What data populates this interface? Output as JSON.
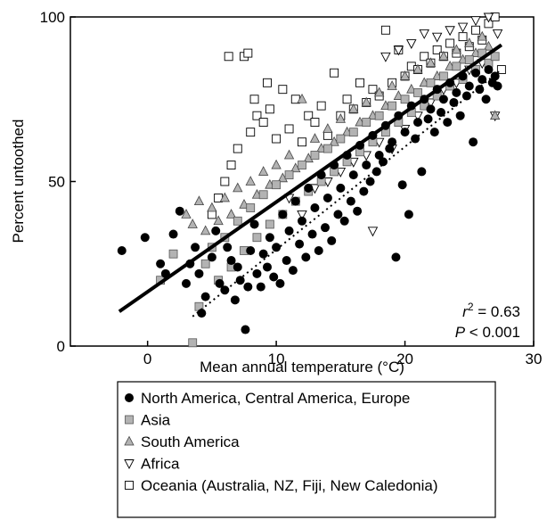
{
  "chart_data": {
    "type": "scatter",
    "xlabel": "Mean annual temperature (°C)",
    "ylabel": "Percent untoothed",
    "xlim": [
      -6,
      30
    ],
    "ylim": [
      0,
      100
    ],
    "xticks": [
      0,
      10,
      20,
      30
    ],
    "yticks": [
      0,
      50,
      100
    ],
    "grid": false,
    "legend_position": "bottom (below plot, boxed)",
    "stats": {
      "r2_label": "r",
      "r2_sup": "2",
      "r2_value": " = 0.63",
      "p_label": "P",
      "p_value": " < 0.001"
    },
    "regression_lines": [
      {
        "name": "overall",
        "style": "solid",
        "x": [
          -2.2,
          27.5
        ],
        "y": [
          10.5,
          91.5
        ]
      },
      {
        "name": "North America, Central America, Europe",
        "style": "dotted",
        "x": [
          3.5,
          27.5
        ],
        "y": [
          9,
          84
        ]
      }
    ],
    "legend": [
      {
        "label": "North America, Central America, Europe",
        "marker": "filled-circle"
      },
      {
        "label": "Asia",
        "marker": "gray-square"
      },
      {
        "label": "South America",
        "marker": "gray-triangle-up"
      },
      {
        "label": "Africa",
        "marker": "open-triangle-down"
      },
      {
        "label": "Oceania (Australia, NZ, Fiji, New Caledonia)",
        "marker": "open-square"
      }
    ],
    "series": [
      {
        "name": "North America, Central America, Europe",
        "marker": "filled-circle",
        "color": "#000000",
        "points": [
          [
            -2,
            29
          ],
          [
            -0.2,
            33
          ],
          [
            1,
            25
          ],
          [
            1.4,
            22
          ],
          [
            2,
            34
          ],
          [
            2.5,
            41
          ],
          [
            3,
            19
          ],
          [
            3.3,
            25
          ],
          [
            3.7,
            30
          ],
          [
            4,
            22
          ],
          [
            4.2,
            10
          ],
          [
            4.5,
            15
          ],
          [
            5,
            27
          ],
          [
            5.3,
            35
          ],
          [
            5.6,
            19
          ],
          [
            6,
            17
          ],
          [
            6.2,
            30
          ],
          [
            6.5,
            26
          ],
          [
            6.8,
            14
          ],
          [
            7,
            24
          ],
          [
            7.2,
            20
          ],
          [
            7.6,
            5
          ],
          [
            7.8,
            18
          ],
          [
            8,
            29
          ],
          [
            8.3,
            37
          ],
          [
            8.5,
            22
          ],
          [
            8.8,
            18
          ],
          [
            9,
            28
          ],
          [
            9.3,
            24
          ],
          [
            9.5,
            33
          ],
          [
            9.8,
            21
          ],
          [
            10,
            30
          ],
          [
            10.3,
            19
          ],
          [
            10.5,
            40
          ],
          [
            10.8,
            26
          ],
          [
            11,
            35
          ],
          [
            11.3,
            23
          ],
          [
            11.5,
            44
          ],
          [
            11.8,
            31
          ],
          [
            12,
            38
          ],
          [
            12.3,
            27
          ],
          [
            12.5,
            48
          ],
          [
            12.8,
            34
          ],
          [
            13,
            42
          ],
          [
            13.3,
            29
          ],
          [
            13.5,
            52
          ],
          [
            13.8,
            36
          ],
          [
            14,
            45
          ],
          [
            14.3,
            32
          ],
          [
            14.5,
            55
          ],
          [
            14.8,
            40
          ],
          [
            15,
            48
          ],
          [
            15.3,
            38
          ],
          [
            15.5,
            58
          ],
          [
            15.8,
            44
          ],
          [
            16,
            52
          ],
          [
            16.3,
            41
          ],
          [
            16.5,
            61
          ],
          [
            16.8,
            47
          ],
          [
            17,
            55
          ],
          [
            17.3,
            50
          ],
          [
            17.5,
            64
          ],
          [
            17.8,
            53
          ],
          [
            18,
            58
          ],
          [
            18.3,
            56
          ],
          [
            18.5,
            67
          ],
          [
            18.8,
            60
          ],
          [
            19,
            62
          ],
          [
            19.3,
            27
          ],
          [
            19.5,
            70
          ],
          [
            19.8,
            49
          ],
          [
            20,
            65
          ],
          [
            20.3,
            40
          ],
          [
            20.5,
            73
          ],
          [
            20.8,
            63
          ],
          [
            21,
            68
          ],
          [
            21.3,
            53
          ],
          [
            21.5,
            75
          ],
          [
            21.8,
            69
          ],
          [
            22,
            72
          ],
          [
            22.3,
            65
          ],
          [
            22.5,
            78
          ],
          [
            22.8,
            71
          ],
          [
            23,
            75
          ],
          [
            23.3,
            68
          ],
          [
            23.5,
            80
          ],
          [
            23.8,
            74
          ],
          [
            24,
            77
          ],
          [
            24.3,
            70
          ],
          [
            24.5,
            82
          ],
          [
            24.8,
            76
          ],
          [
            25,
            79
          ],
          [
            25.3,
            62
          ],
          [
            25.5,
            83
          ],
          [
            25.8,
            78
          ],
          [
            26,
            81
          ],
          [
            26.3,
            75
          ],
          [
            26.5,
            84
          ],
          [
            26.8,
            80
          ],
          [
            27,
            82
          ],
          [
            27.2,
            79
          ]
        ]
      },
      {
        "name": "Asia",
        "marker": "gray-square",
        "color": "#b0b0b0",
        "points": [
          [
            1,
            20
          ],
          [
            2,
            28
          ],
          [
            3.5,
            1
          ],
          [
            4,
            12
          ],
          [
            4.5,
            25
          ],
          [
            5,
            30
          ],
          [
            5.5,
            20
          ],
          [
            6,
            33
          ],
          [
            6.5,
            24
          ],
          [
            7,
            38
          ],
          [
            7.5,
            29
          ],
          [
            8,
            42
          ],
          [
            8.5,
            33
          ],
          [
            9,
            46
          ],
          [
            9.5,
            37
          ],
          [
            10,
            49
          ],
          [
            10.5,
            40
          ],
          [
            11,
            52
          ],
          [
            11.5,
            44
          ],
          [
            12,
            55
          ],
          [
            12.5,
            47
          ],
          [
            13,
            58
          ],
          [
            13.5,
            50
          ],
          [
            14,
            60
          ],
          [
            14.5,
            53
          ],
          [
            15,
            63
          ],
          [
            15.5,
            56
          ],
          [
            16,
            65
          ],
          [
            16.5,
            59
          ],
          [
            17,
            68
          ],
          [
            17.5,
            62
          ],
          [
            18,
            70
          ],
          [
            18.5,
            65
          ],
          [
            19,
            73
          ],
          [
            19.5,
            68
          ],
          [
            20,
            75
          ],
          [
            20.5,
            71
          ],
          [
            21,
            77
          ],
          [
            21.5,
            73
          ],
          [
            22,
            80
          ],
          [
            22.5,
            76
          ],
          [
            23,
            82
          ],
          [
            23.5,
            79
          ],
          [
            24,
            85
          ],
          [
            24.5,
            81
          ],
          [
            25,
            87
          ],
          [
            25.5,
            84
          ],
          [
            26,
            89
          ],
          [
            26.5,
            86
          ],
          [
            27,
            88
          ]
        ]
      },
      {
        "name": "South America",
        "marker": "gray-triangle-up",
        "color": "#b0b0b0",
        "points": [
          [
            3,
            40
          ],
          [
            3.5,
            37
          ],
          [
            4,
            44
          ],
          [
            4.5,
            35
          ],
          [
            5,
            42
          ],
          [
            5.5,
            38
          ],
          [
            6,
            45
          ],
          [
            6.5,
            40
          ],
          [
            7,
            48
          ],
          [
            7.5,
            43
          ],
          [
            8,
            50
          ],
          [
            8.5,
            46
          ],
          [
            9,
            53
          ],
          [
            9.5,
            49
          ],
          [
            10,
            55
          ],
          [
            10.5,
            51
          ],
          [
            11,
            58
          ],
          [
            11.5,
            54
          ],
          [
            12,
            75
          ],
          [
            12.5,
            57
          ],
          [
            13,
            63
          ],
          [
            13.5,
            60
          ],
          [
            14,
            66
          ],
          [
            14.5,
            62
          ],
          [
            15,
            69
          ],
          [
            15.5,
            65
          ],
          [
            16,
            72
          ],
          [
            16.5,
            68
          ],
          [
            17,
            74
          ],
          [
            17.5,
            70
          ],
          [
            18,
            77
          ],
          [
            18.5,
            73
          ],
          [
            19,
            79
          ],
          [
            19.5,
            76
          ],
          [
            20,
            82
          ],
          [
            20.5,
            78
          ],
          [
            21,
            84
          ],
          [
            21.5,
            80
          ],
          [
            22,
            86
          ],
          [
            22.5,
            82
          ],
          [
            23,
            88
          ],
          [
            23.5,
            85
          ],
          [
            24,
            90
          ],
          [
            24.5,
            87
          ],
          [
            25,
            92
          ],
          [
            25.5,
            89
          ],
          [
            26,
            94
          ],
          [
            26.5,
            91
          ],
          [
            27,
            70
          ]
        ]
      },
      {
        "name": "Africa",
        "marker": "open-triangle-down",
        "color": "#000000",
        "points": [
          [
            11,
            45
          ],
          [
            12,
            40
          ],
          [
            13,
            48
          ],
          [
            14,
            50
          ],
          [
            15,
            53
          ],
          [
            16,
            56
          ],
          [
            17,
            58
          ],
          [
            17.5,
            35
          ],
          [
            18,
            62
          ],
          [
            18.5,
            88
          ],
          [
            19,
            60
          ],
          [
            19.5,
            90
          ],
          [
            20,
            66
          ],
          [
            20.5,
            92
          ],
          [
            21,
            70
          ],
          [
            21.5,
            95
          ],
          [
            22,
            74
          ],
          [
            22.5,
            94
          ],
          [
            23,
            78
          ],
          [
            23.5,
            96
          ],
          [
            24,
            80
          ],
          [
            24.5,
            97
          ],
          [
            25,
            84
          ],
          [
            25.5,
            99
          ],
          [
            26,
            86
          ],
          [
            26.5,
            100
          ],
          [
            27,
            70
          ],
          [
            27.2,
            95
          ]
        ]
      },
      {
        "name": "Oceania (Australia, NZ, Fiji, New Caledonia)",
        "marker": "open-square",
        "color": "#000000",
        "points": [
          [
            5,
            40
          ],
          [
            5.5,
            45
          ],
          [
            6,
            50
          ],
          [
            6.3,
            88
          ],
          [
            6.5,
            55
          ],
          [
            7,
            60
          ],
          [
            7.5,
            88
          ],
          [
            7.8,
            89
          ],
          [
            8,
            65
          ],
          [
            8.3,
            75
          ],
          [
            8.5,
            70
          ],
          [
            9,
            68
          ],
          [
            9.3,
            80
          ],
          [
            9.5,
            72
          ],
          [
            10,
            63
          ],
          [
            10.5,
            78
          ],
          [
            11,
            66
          ],
          [
            11.5,
            75
          ],
          [
            12,
            62
          ],
          [
            12.5,
            70
          ],
          [
            13,
            68
          ],
          [
            13.5,
            73
          ],
          [
            14,
            64
          ],
          [
            14.5,
            83
          ],
          [
            15,
            70
          ],
          [
            15.5,
            75
          ],
          [
            16,
            72
          ],
          [
            16.5,
            80
          ],
          [
            17,
            74
          ],
          [
            17.5,
            78
          ],
          [
            18,
            76
          ],
          [
            18.5,
            96
          ],
          [
            19,
            80
          ],
          [
            19.5,
            90
          ],
          [
            20,
            82
          ],
          [
            20.5,
            85
          ],
          [
            21,
            84
          ],
          [
            21.5,
            88
          ],
          [
            22,
            86
          ],
          [
            22.5,
            90
          ],
          [
            23,
            88
          ],
          [
            23.5,
            92
          ],
          [
            24,
            89
          ],
          [
            24.5,
            94
          ],
          [
            25,
            91
          ],
          [
            25.5,
            96
          ],
          [
            26,
            93
          ],
          [
            26.5,
            98
          ],
          [
            27,
            100
          ],
          [
            27.5,
            84
          ]
        ]
      }
    ]
  }
}
